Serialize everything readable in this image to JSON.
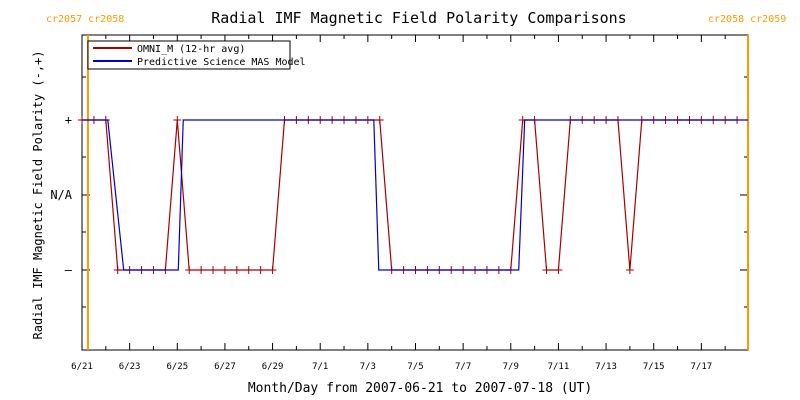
{
  "chart_data": {
    "type": "line",
    "title": "Radial IMF Magnetic Field Polarity Comparisons",
    "xlabel": "Month/Day from 2007-06-21 to 2007-07-18 (UT)",
    "ylabel": "Radial IMF Magnetic Field Polarity (-,+)",
    "x_range": [
      "2007-06-21",
      "2007-07-18"
    ],
    "x_tick_labels": [
      "6/21",
      "6/23",
      "6/25",
      "6/27",
      "6/29",
      "7/1",
      "7/3",
      "7/5",
      "7/7",
      "7/9",
      "7/11",
      "7/13",
      "7/15",
      "7/17"
    ],
    "y_tick_labels": [
      "+",
      "N/A",
      "–"
    ],
    "y_values_key": {
      "+": 1,
      "N/A": 0,
      "–": -1
    },
    "carrington": {
      "left": "cr2057 cr2058",
      "right": "cr2058 cr2059",
      "color": "#ff9900",
      "boundary_dates": [
        "2007-06-21T06:00",
        "2007-07-18T23:00"
      ]
    },
    "legend_placement": "top-left",
    "series": [
      {
        "name": "OMNI_M (12-hr avg)",
        "color": "#aa0000",
        "marker": "+",
        "x": [
          "2007-06-21T00:00",
          "2007-06-21T12:00",
          "2007-06-22T00:00",
          "2007-06-22T12:00",
          "2007-06-23T00:00",
          "2007-06-23T12:00",
          "2007-06-24T00:00",
          "2007-06-24T12:00",
          "2007-06-25T00:00",
          "2007-06-25T12:00",
          "2007-06-26T00:00",
          "2007-06-26T12:00",
          "2007-06-27T00:00",
          "2007-06-27T12:00",
          "2007-06-28T00:00",
          "2007-06-28T12:00",
          "2007-06-29T00:00",
          "2007-06-29T12:00",
          "2007-06-30T00:00",
          "2007-06-30T12:00",
          "2007-07-01T00:00",
          "2007-07-01T12:00",
          "2007-07-02T00:00",
          "2007-07-02T12:00",
          "2007-07-03T00:00",
          "2007-07-03T12:00",
          "2007-07-04T00:00",
          "2007-07-04T12:00",
          "2007-07-05T00:00",
          "2007-07-05T12:00",
          "2007-07-06T00:00",
          "2007-07-06T12:00",
          "2007-07-07T00:00",
          "2007-07-07T12:00",
          "2007-07-08T00:00",
          "2007-07-08T12:00",
          "2007-07-09T00:00",
          "2007-07-09T12:00",
          "2007-07-10T00:00",
          "2007-07-10T12:00",
          "2007-07-11T00:00",
          "2007-07-11T12:00",
          "2007-07-12T00:00",
          "2007-07-12T12:00",
          "2007-07-13T00:00",
          "2007-07-13T12:00",
          "2007-07-14T00:00",
          "2007-07-14T12:00",
          "2007-07-15T00:00",
          "2007-07-15T12:00",
          "2007-07-16T00:00",
          "2007-07-16T12:00",
          "2007-07-17T00:00",
          "2007-07-17T12:00",
          "2007-07-18T00:00",
          "2007-07-18T12:00"
        ],
        "values": [
          1,
          1,
          1,
          -1,
          -1,
          -1,
          -1,
          -1,
          1,
          -1,
          -1,
          -1,
          -1,
          -1,
          -1,
          -1,
          -1,
          1,
          1,
          1,
          1,
          1,
          1,
          1,
          1,
          1,
          -1,
          -1,
          -1,
          -1,
          -1,
          -1,
          -1,
          -1,
          -1,
          -1,
          -1,
          1,
          1,
          -1,
          -1,
          1,
          1,
          1,
          1,
          1,
          -1,
          1,
          1,
          1,
          1,
          1,
          1,
          1,
          1,
          1
        ]
      },
      {
        "name": "Predictive Science MAS Model",
        "color": "#0000cc",
        "x": [
          "2007-06-21T00:00",
          "2007-06-22T02:00",
          "2007-06-22T18:00",
          "2007-06-25T01:00",
          "2007-06-25T06:00",
          "2007-07-03T06:00",
          "2007-07-03T11:00",
          "2007-07-09T08:00",
          "2007-07-09T14:00",
          "2007-07-18T23:00"
        ],
        "values": [
          1,
          1,
          -1,
          -1,
          1,
          1,
          -1,
          -1,
          1,
          1
        ]
      }
    ]
  }
}
